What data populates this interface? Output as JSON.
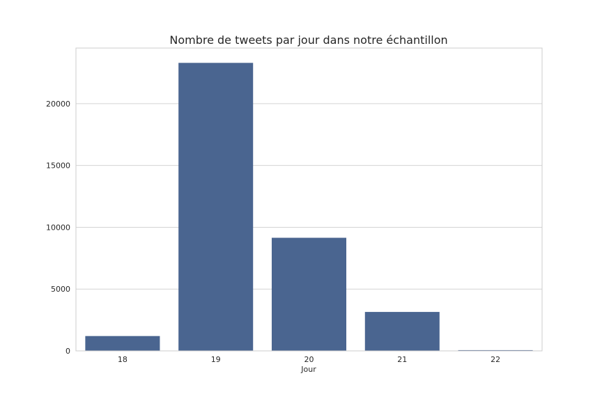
{
  "chart_data": {
    "type": "bar",
    "title": "Nombre de tweets par jour dans notre échantillon",
    "xlabel": "Jour",
    "ylabel": "",
    "categories": [
      "18",
      "19",
      "20",
      "21",
      "22"
    ],
    "values": [
      1200,
      23300,
      9150,
      3150,
      60
    ],
    "ylim": [
      0,
      24500
    ],
    "yticks": [
      0,
      5000,
      10000,
      15000,
      20000
    ],
    "ytick_labels": [
      "0",
      "5000",
      "10000",
      "15000",
      "20000"
    ],
    "grid": true,
    "legend": "none",
    "bar_color": "#4a6590",
    "grid_color": "#d3d3d3",
    "axes_border_color": "#cccccc"
  }
}
